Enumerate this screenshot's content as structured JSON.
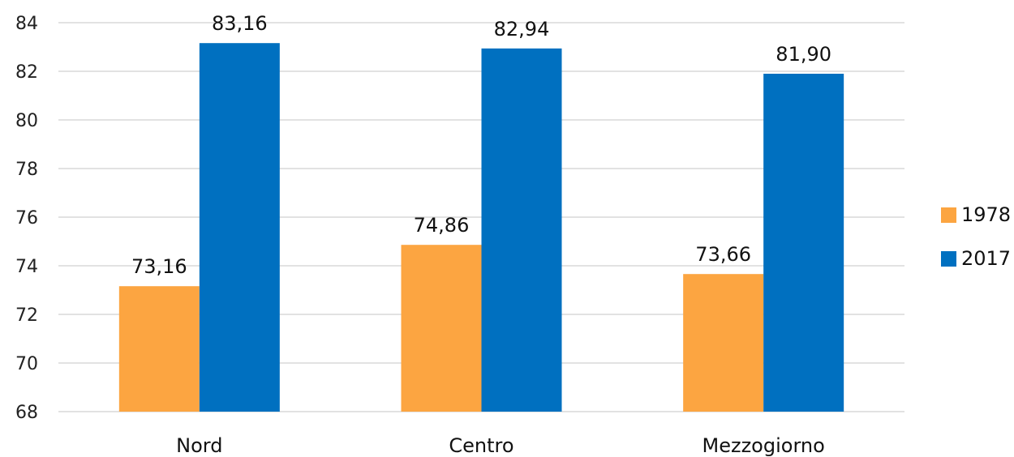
{
  "chart_data": {
    "type": "bar",
    "categories": [
      "Nord",
      "Centro",
      "Mezzogiorno"
    ],
    "series": [
      {
        "name": "1978",
        "values": [
          73.16,
          74.86,
          73.66
        ],
        "labels": [
          "73,16",
          "74,86",
          "73,66"
        ],
        "color": "#FCA541"
      },
      {
        "name": "2017",
        "values": [
          83.16,
          82.94,
          81.9
        ],
        "labels": [
          "83,16",
          "82,94",
          "81,90"
        ],
        "color": "#0070C0"
      }
    ],
    "yticks": [
      "68",
      "70",
      "72",
      "74",
      "76",
      "78",
      "80",
      "82",
      "84"
    ],
    "ylim": [
      68,
      84
    ],
    "grid": true,
    "legend_position": "right"
  }
}
